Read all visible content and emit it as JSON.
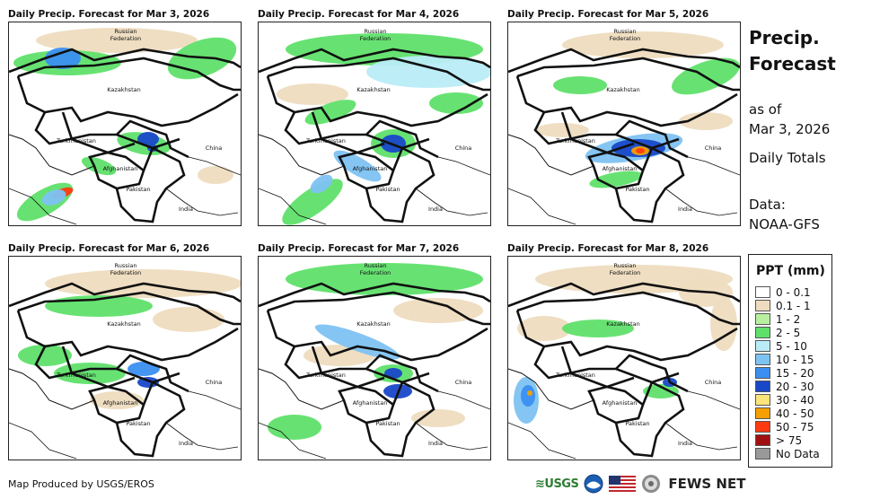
{
  "panels": [
    {
      "title": "Daily Precip. Forecast for Mar 3, 2026"
    },
    {
      "title": "Daily Precip. Forecast for Mar 4, 2026"
    },
    {
      "title": "Daily Precip. Forecast for Mar 5, 2026"
    },
    {
      "title": "Daily Precip. Forecast for Mar 6, 2026"
    },
    {
      "title": "Daily Precip. Forecast for Mar 7, 2026"
    },
    {
      "title": "Daily Precip. Forecast for Mar 8, 2026"
    }
  ],
  "map_labels": {
    "russia_line1": "Russian",
    "russia_line2": "Federation",
    "kazakhstan": "Kazakhstan",
    "turkmenistan": "Turkmenistan",
    "china": "China",
    "afghanistan": "Afghanistan",
    "pakistan": "Pakistan",
    "india": "India"
  },
  "side": {
    "title_line1": "Precip.",
    "title_line2": "Forecast",
    "asof_line1": "as of",
    "asof_line2": "Mar 3, 2026",
    "daily": "Daily Totals",
    "data_line1": "Data:",
    "data_line2": "NOAA-GFS"
  },
  "legend": {
    "title": "PPT (mm)",
    "items": [
      {
        "label": "0 - 0.1",
        "color": "#ffffff"
      },
      {
        "label": "0.1 - 1",
        "color": "#eedcbf"
      },
      {
        "label": "1 - 2",
        "color": "#b8f0a0"
      },
      {
        "label": "2 - 5",
        "color": "#5fe06a"
      },
      {
        "label": "5 - 10",
        "color": "#b9ecf7"
      },
      {
        "label": "10 - 15",
        "color": "#7ec2f2"
      },
      {
        "label": "15 - 20",
        "color": "#3a8ff0"
      },
      {
        "label": "20 - 30",
        "color": "#1848c8"
      },
      {
        "label": "30 - 40",
        "color": "#fde47a"
      },
      {
        "label": "40 - 50",
        "color": "#f5a000"
      },
      {
        "label": "50 - 75",
        "color": "#ff3a10"
      },
      {
        "label": "> 75",
        "color": "#a01010"
      },
      {
        "label": "No Data",
        "color": "#999999"
      }
    ]
  },
  "footer": {
    "credit": "Map Produced by USGS/EROS"
  },
  "logos": {
    "usgs": "≋USGS",
    "fews": "FEWS NET"
  }
}
